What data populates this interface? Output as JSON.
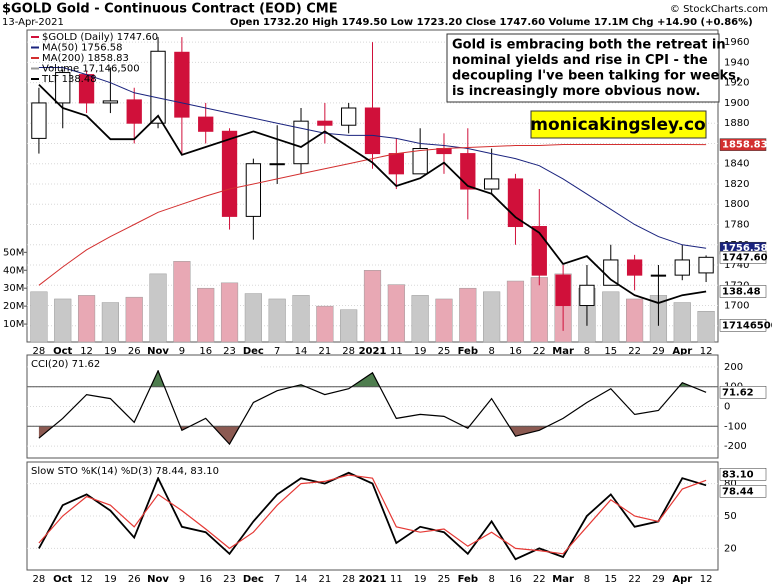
{
  "chart_data": [
    {
      "type": "candlestick",
      "title": "$GOLD Gold - Continuous Contract (EOD) CME",
      "date": "13-Apr-2021",
      "subtitle": "Open 1732.20 High 1749.50 Low 1723.20 Close 1747.60 Volume 17.1M Chg +14.90 (+0.86%)",
      "source": "© StockCharts.com",
      "annotation": [
        "Gold is embracing both the retreat in",
        "nominal yields and rise in CPI - the",
        "decoupling I've been talking for weeks,",
        "is increasingly more obvious now."
      ],
      "watermark": "monicakingsley.co",
      "categories": [
        "28",
        "Oct",
        "12",
        "19",
        "26",
        "Nov",
        "9",
        "16",
        "23",
        "Dec",
        "7",
        "14",
        "21",
        "28",
        "2021",
        "11",
        "19",
        "25",
        "Feb",
        "8",
        "16",
        "22",
        "Mar",
        "8",
        "15",
        "22",
        "29",
        "Apr",
        "12"
      ],
      "ohlc": {
        "name": "$GOLD (Daily) 1747.60",
        "tag": "1747.60",
        "up_color": "#000000",
        "down_color": "#d0103a",
        "open": [
          1865,
          1900,
          1928,
          1900,
          1903,
          1880,
          1950,
          1886,
          1872,
          1788,
          1840,
          1840,
          1882,
          1878,
          1895,
          1850,
          1830,
          1855,
          1850,
          1815,
          1825,
          1778,
          1730,
          1700,
          1720,
          1745,
          1730,
          1730,
          1732.2
        ],
        "high": [
          1915,
          1933,
          1932,
          1935,
          1915,
          1965,
          1965,
          1900,
          1875,
          1845,
          1878,
          1895,
          1900,
          1900,
          1960,
          1865,
          1875,
          1870,
          1875,
          1855,
          1830,
          1815,
          1740,
          1740,
          1760,
          1750,
          1740,
          1760,
          1749.5
        ],
        "low": [
          1850,
          1875,
          1890,
          1890,
          1860,
          1875,
          1850,
          1860,
          1775,
          1765,
          1820,
          1830,
          1860,
          1870,
          1835,
          1815,
          1830,
          1830,
          1785,
          1810,
          1760,
          1720,
          1675,
          1680,
          1720,
          1715,
          1680,
          1725,
          1723.2
        ],
        "close": [
          1900,
          1930,
          1900,
          1902,
          1880,
          1951,
          1886,
          1872,
          1788,
          1840,
          1840,
          1882,
          1878,
          1895,
          1850,
          1830,
          1855,
          1850,
          1815,
          1825,
          1778,
          1730,
          1700,
          1720,
          1745,
          1730,
          1730,
          1745,
          1747.6
        ]
      },
      "series": [
        {
          "name": "MA(50) 1756.58",
          "tag": "1756.58",
          "color": "#1a237e",
          "values": [
            1935,
            1935,
            1928,
            1920,
            1910,
            1905,
            1900,
            1895,
            1890,
            1885,
            1880,
            1875,
            1870,
            1868,
            1868,
            1865,
            1860,
            1858,
            1855,
            1850,
            1845,
            1838,
            1825,
            1810,
            1795,
            1780,
            1768,
            1760,
            1756.58
          ]
        },
        {
          "name": "MA(200) 1858.83",
          "tag": "1858.83",
          "color": "#d32f2f",
          "values": [
            1720,
            1738,
            1755,
            1768,
            1780,
            1792,
            1800,
            1808,
            1815,
            1820,
            1825,
            1830,
            1835,
            1840,
            1845,
            1850,
            1853,
            1855,
            1856,
            1857,
            1858,
            1858,
            1859,
            1859,
            1859,
            1859,
            1859,
            1859,
            1858.83
          ]
        },
        {
          "name": "TLT 138.48",
          "tag": "138.48",
          "color": "#000000",
          "axis": "y3",
          "values": [
            165,
            162,
            161,
            158,
            158,
            161,
            156,
            157,
            158,
            159,
            158,
            157,
            159,
            157,
            155,
            152,
            153,
            155,
            152,
            151,
            148,
            146,
            142,
            143,
            140,
            138,
            137,
            138,
            138.48
          ]
        }
      ],
      "volume": {
        "name": "Volume 17,146,500",
        "tag": "17146500",
        "color": "#e8a8b4",
        "values": [
          28000000,
          24000000,
          26000000,
          22000000,
          25000000,
          38000000,
          45000000,
          30000000,
          33000000,
          27000000,
          24000000,
          26000000,
          20000000,
          18000000,
          40000000,
          32000000,
          26000000,
          24000000,
          30000000,
          28000000,
          34000000,
          36000000,
          38000000,
          30000000,
          28000000,
          24000000,
          26000000,
          22000000,
          17146500
        ]
      },
      "ylim": [
        1664,
        1972
      ],
      "yticks": [
        1680,
        1700,
        1720,
        1740,
        1760,
        1780,
        1800,
        1820,
        1840,
        1860,
        1880,
        1900,
        1920,
        1940,
        1960
      ],
      "y3lim": [
        132,
        172
      ],
      "vlim": [
        0,
        174000000
      ],
      "vticks": [
        {
          "value": 10000000,
          "label": "10M"
        },
        {
          "value": 20000000,
          "label": "20M"
        },
        {
          "value": 30000000,
          "label": "30M"
        },
        {
          "value": 40000000,
          "label": "40M"
        },
        {
          "value": 50000000,
          "label": "50M"
        }
      ],
      "grid": true
    },
    {
      "type": "line",
      "title": "CCI(20) 71.62",
      "series": [
        {
          "tag": "71.62",
          "color": "#000000",
          "values": [
            -160,
            -60,
            60,
            40,
            -80,
            180,
            -120,
            -60,
            -190,
            20,
            80,
            110,
            60,
            90,
            170,
            -60,
            -40,
            -50,
            -110,
            40,
            -150,
            -120,
            -60,
            20,
            90,
            -40,
            -20,
            120,
            71.62
          ]
        }
      ],
      "bands": {
        "upper": 100,
        "lower": -100,
        "upper_color": "#4e7d4e",
        "lower_color": "#8c5a52"
      },
      "ylim": [
        -260,
        260
      ],
      "yticks": [
        200,
        100,
        0,
        -100,
        -200
      ],
      "grid": true
    },
    {
      "type": "line",
      "title": "Slow STO %K(14) %D(3) 78.44, 83.10",
      "categories": [
        "28",
        "Oct",
        "12",
        "19",
        "26",
        "Nov",
        "9",
        "16",
        "23",
        "Dec",
        "7",
        "14",
        "21",
        "28",
        "2021",
        "11",
        "19",
        "25",
        "Feb",
        "8",
        "16",
        "22",
        "Mar",
        "8",
        "15",
        "22",
        "29",
        "Apr",
        "12"
      ],
      "series": [
        {
          "tag": "78.44",
          "color": "#000000",
          "values": [
            20,
            60,
            70,
            55,
            30,
            85,
            40,
            35,
            15,
            45,
            70,
            85,
            80,
            90,
            80,
            25,
            40,
            35,
            15,
            45,
            10,
            20,
            12,
            50,
            70,
            40,
            45,
            85,
            78.44
          ]
        },
        {
          "tag": "83.10",
          "color": "#e53935",
          "values": [
            25,
            50,
            68,
            60,
            40,
            70,
            55,
            38,
            20,
            35,
            60,
            80,
            82,
            88,
            85,
            40,
            35,
            38,
            22,
            35,
            20,
            18,
            15,
            40,
            65,
            50,
            45,
            75,
            83.1
          ]
        }
      ],
      "ylim": [
        0,
        100
      ],
      "yticks": [
        80,
        50,
        20
      ],
      "grid": true
    }
  ]
}
